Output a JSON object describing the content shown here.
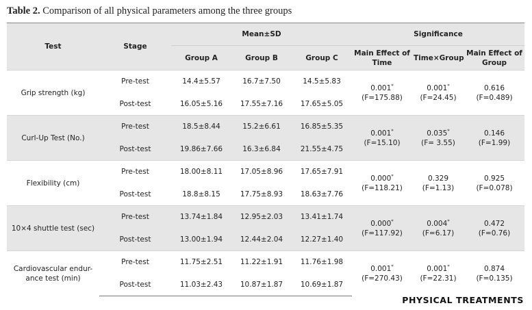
{
  "caption": {
    "label": "Table 2.",
    "text": "Comparison of all physical parameters among the three groups"
  },
  "headers": {
    "test": "Test",
    "stage": "Stage",
    "mean_sd": "Mean±SD",
    "significance": "Significance",
    "group_a": "Group A",
    "group_b": "Group B",
    "group_c": "Group C",
    "main_effect_time": "Main Effect of Time",
    "time_group": "Time×Group",
    "main_effect_group": "Main Effect of Group"
  },
  "rows": [
    {
      "test": "Grip strength (kg)",
      "pre": {
        "stage": "Pre-test",
        "a": "14.4±5.57",
        "b": "16.7±7.50",
        "c": "14.5±5.83"
      },
      "post": {
        "stage": "Post-test",
        "a": "16.05±5.16",
        "b": "17.55±7.16",
        "c": "17.65±5.05"
      },
      "time": {
        "p": "0.001",
        "sig": "*",
        "f": "(F=175.88)"
      },
      "inter": {
        "p": "0.001",
        "sig": "*",
        "f": "(F=24.45)"
      },
      "group": {
        "p": "0.616",
        "sig": "",
        "f": "(F=0.489)"
      }
    },
    {
      "test": "Curl-Up Test (No.)",
      "pre": {
        "stage": "Pre-test",
        "a": "18.5±8.44",
        "b": "15.2±6.61",
        "c": "16.85±5.35"
      },
      "post": {
        "stage": "Post-test",
        "a": "19.86±7.66",
        "b": "16.3±6.84",
        "c": "21.55±4.75"
      },
      "time": {
        "p": "0.001",
        "sig": "*",
        "f": "(F=15.10)"
      },
      "inter": {
        "p": "0.035",
        "sig": "*",
        "f": "(F= 3.55)"
      },
      "group": {
        "p": "0.146",
        "sig": "",
        "f": "(F=1.99)"
      }
    },
    {
      "test": "Flexibility (cm)",
      "pre": {
        "stage": "Pre-test",
        "a": "18.00±8.11",
        "b": "17.05±8.96",
        "c": "17.65±7.91"
      },
      "post": {
        "stage": "Post-test",
        "a": "18.8±8.15",
        "b": "17.75±8.93",
        "c": "18.63±7.76"
      },
      "time": {
        "p": "0.000",
        "sig": "*",
        "f": "(F=118.21)"
      },
      "inter": {
        "p": "0.329",
        "sig": "",
        "f": "(F=1.13)"
      },
      "group": {
        "p": "0.925",
        "sig": "",
        "f": "(F=0.078)"
      }
    },
    {
      "test": "10×4 shuttle test (sec)",
      "pre": {
        "stage": "Pre-test",
        "a": "13.74±1.84",
        "b": "12.95±2.03",
        "c": "13.41±1.74"
      },
      "post": {
        "stage": "Post-test",
        "a": "13.00±1.94",
        "b": "12.44±2.04",
        "c": "12.27±1.40"
      },
      "time": {
        "p": "0.000",
        "sig": "*",
        "f": "(F=117.92)"
      },
      "inter": {
        "p": "0.004",
        "sig": "*",
        "f": "(F=6.17)"
      },
      "group": {
        "p": "0.472",
        "sig": "",
        "f": "(F=0.76)"
      }
    },
    {
      "test": "Cardiovascular endur-ance test (min)",
      "pre": {
        "stage": "Pre-test",
        "a": "11.75±2.51",
        "b": "11.22±1.91",
        "c": "11.76±1.98"
      },
      "post": {
        "stage": "Post-test",
        "a": "11.03±2.43",
        "b": "10.87±1.87",
        "c": "10.69±1.87"
      },
      "time": {
        "p": "0.001",
        "sig": "*",
        "f": "(F=270.43)"
      },
      "inter": {
        "p": "0.001",
        "sig": "*",
        "f": "(F=22.31)"
      },
      "group": {
        "p": "0.874",
        "sig": "",
        "f": "(F=0.135)"
      }
    }
  ],
  "footer": {
    "logo_text": "PHYSICAL TREATMENTS"
  }
}
